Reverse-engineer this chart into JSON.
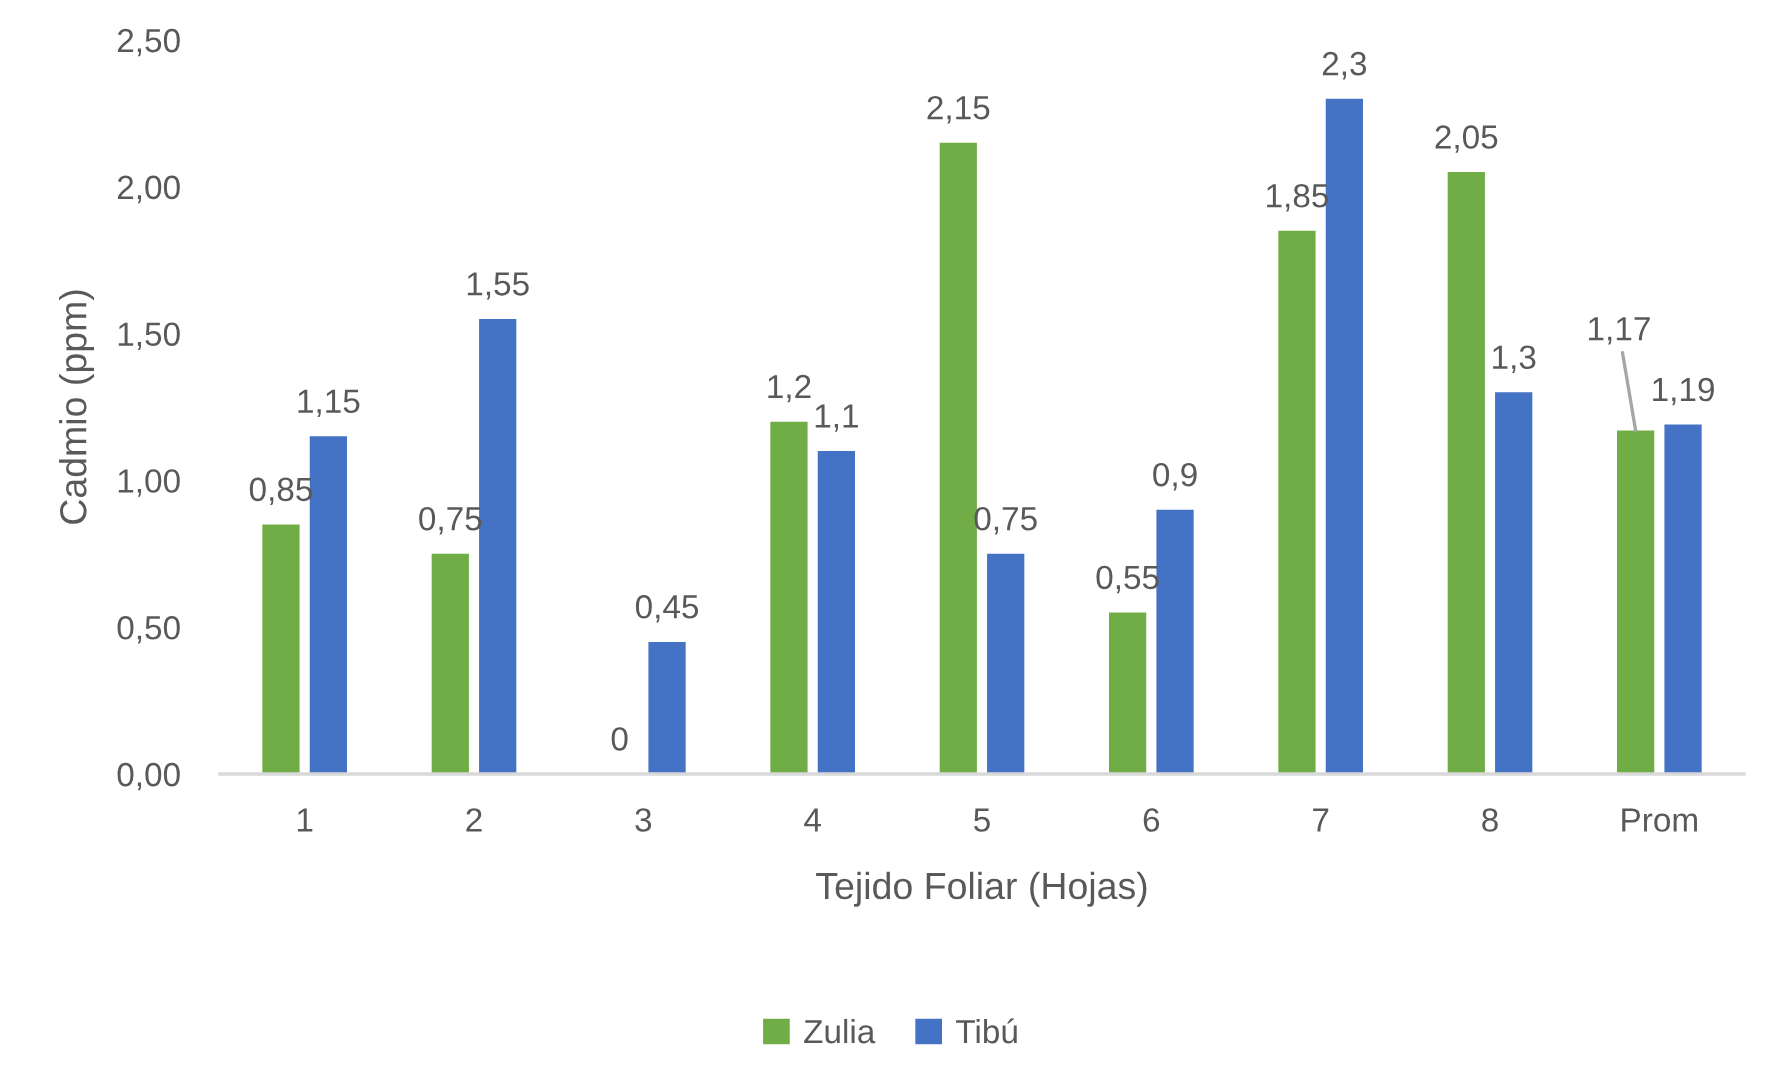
{
  "chart_data": {
    "type": "bar",
    "xlabel": "Tejido Foliar (Hojas)",
    "ylabel": "Cadmio (ppm)",
    "categories": [
      "1",
      "2",
      "3",
      "4",
      "5",
      "6",
      "7",
      "8",
      "Prom"
    ],
    "series": [
      {
        "name": "Zulia",
        "color": "#70ad47",
        "values": [
          0.85,
          0.75,
          0,
          1.2,
          2.15,
          0.55,
          1.85,
          2.05,
          1.17
        ],
        "value_labels": [
          "0,85",
          "0,75",
          "0",
          "1,2",
          "2,15",
          "0,55",
          "1,85",
          "2,05",
          "1,17"
        ]
      },
      {
        "name": "Tibú",
        "color": "#4472c4",
        "values": [
          1.15,
          1.55,
          0.45,
          1.1,
          0.75,
          0.9,
          2.3,
          1.3,
          1.19
        ],
        "value_labels": [
          "1,15",
          "1,55",
          "0,45",
          "1,1",
          "0,75",
          "0,9",
          "2,3",
          "1,3",
          "1,19"
        ]
      }
    ],
    "ylim": [
      0,
      2.5
    ],
    "yticks": [
      {
        "value": 0,
        "label": "0,00"
      },
      {
        "value": 0.5,
        "label": "0,50"
      },
      {
        "value": 1,
        "label": "1,00"
      },
      {
        "value": 1.5,
        "label": "1,50"
      },
      {
        "value": 2,
        "label": "2,00"
      },
      {
        "value": 2.5,
        "label": "2,50"
      }
    ],
    "grid": false,
    "legend": "bottom"
  }
}
